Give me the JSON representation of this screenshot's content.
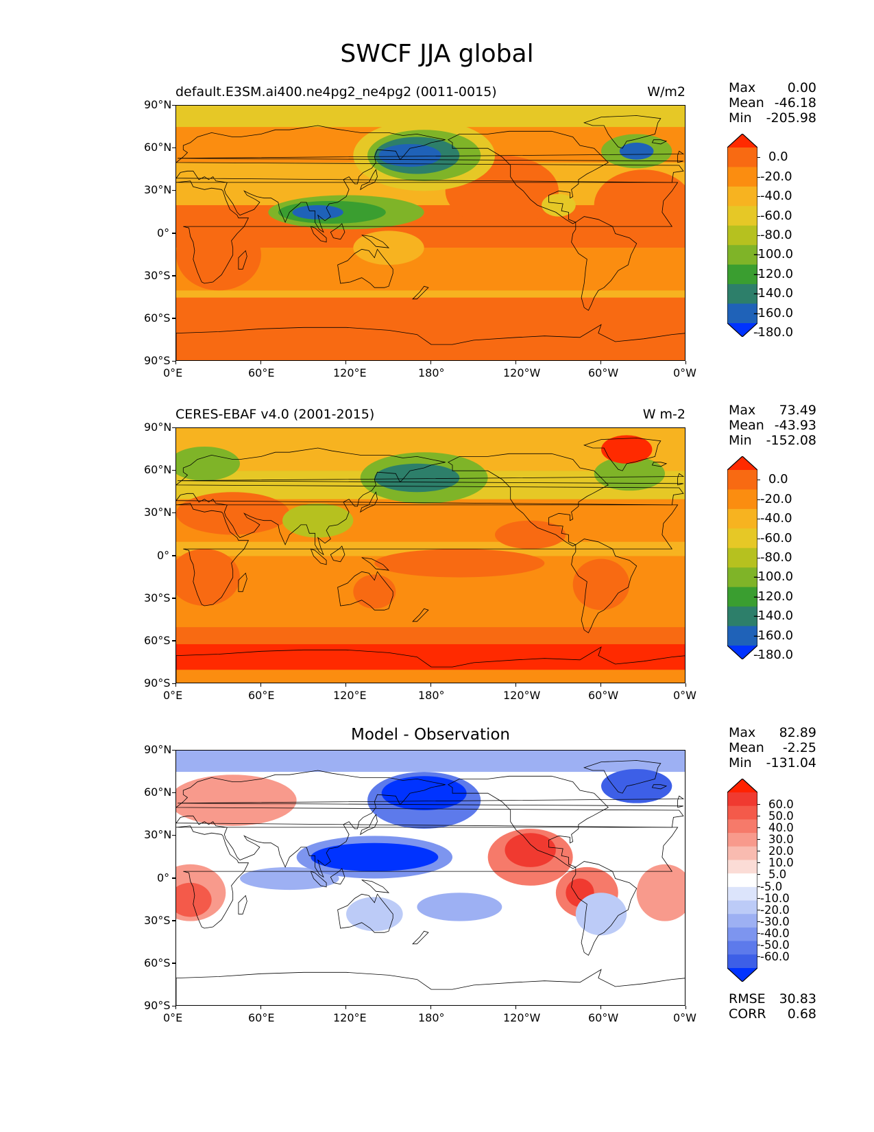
{
  "title": "SWCF JJA global",
  "panels": [
    {
      "id": "model",
      "title": "default.E3SM.ai400.ne4pg2_ne4pg2 (0011-0015)",
      "units": "W/m2",
      "stats": {
        "max_label": "Max",
        "max": "0.00",
        "mean_label": "Mean",
        "mean": "-46.18",
        "min_label": "Min",
        "min": "-205.98"
      },
      "xticks": [
        "0°E",
        "60°E",
        "120°E",
        "180°",
        "120°W",
        "60°W",
        "0°W"
      ],
      "yticks": [
        "90°N",
        "60°N",
        "30°N",
        "0°",
        "30°S",
        "60°S",
        "90°S"
      ]
    },
    {
      "id": "obs",
      "title": "CERES-EBAF v4.0 (2001-2015)",
      "units": "W m-2",
      "stats": {
        "max_label": "Max",
        "max": "73.49",
        "mean_label": "Mean",
        "mean": "-43.93",
        "min_label": "Min",
        "min": "-152.08"
      },
      "xticks": [
        "0°E",
        "60°E",
        "120°E",
        "180°",
        "120°W",
        "60°W",
        "0°W"
      ],
      "yticks": [
        "90°N",
        "60°N",
        "30°N",
        "0°",
        "30°S",
        "60°S",
        "90°S"
      ]
    },
    {
      "id": "diff",
      "title": "Model - Observation",
      "units": "",
      "stats": {
        "max_label": "Max",
        "max": "82.89",
        "mean_label": "Mean",
        "mean": "-2.25",
        "min_label": "Min",
        "min": "-131.04"
      },
      "xticks": [
        "0°E",
        "60°E",
        "120°E",
        "180°",
        "120°W",
        "60°W",
        "0°W"
      ],
      "yticks": [
        "90°N",
        "60°N",
        "30°N",
        "0°",
        "30°S",
        "60°S",
        "90°S"
      ],
      "rmse_label": "RMSE",
      "rmse": "30.83",
      "corr_label": "CORR",
      "corr": "0.68"
    }
  ],
  "colorbar_main": {
    "labels": [
      "0.0",
      "-20.0",
      "-40.0",
      "-60.0",
      "-80.0",
      "-100.0",
      "-120.0",
      "-140.0",
      "-160.0",
      "-180.0"
    ],
    "colors": [
      "#ff2a00",
      "#f86a12",
      "#fb8d10",
      "#f7b320",
      "#e6c826",
      "#b6c11f",
      "#7fb428",
      "#3a9e30",
      "#2d7f6a",
      "#1f62b8",
      "#0033ff"
    ]
  },
  "colorbar_diff": {
    "labels": [
      "60.0",
      "50.0",
      "40.0",
      "30.0",
      "20.0",
      "10.0",
      "5.0",
      "-5.0",
      "-10.0",
      "-20.0",
      "-30.0",
      "-40.0",
      "-50.0",
      "-60.0"
    ],
    "colors": [
      "#ff2200",
      "#f03a30",
      "#f45a4a",
      "#f67a6a",
      "#f89a8c",
      "#f9bbb0",
      "#fbdcd6",
      "#ffffff",
      "#dce4fb",
      "#bccbf7",
      "#9db0f3",
      "#7d95ef",
      "#5d7aeb",
      "#3d5fe7",
      "#0033ff"
    ]
  },
  "chart_data": [
    {
      "type": "heatmap",
      "title": "default.E3SM.ai400.ne4pg2_ne4pg2 (0011-0015)",
      "xlabel": "",
      "ylabel": "",
      "x_range": [
        0,
        360
      ],
      "y_range": [
        -90,
        90
      ],
      "colorbar_ticks": [
        0,
        -20,
        -40,
        -60,
        -80,
        -100,
        -120,
        -140,
        -160,
        -180
      ],
      "units": "W/m2",
      "max": 0.0,
      "mean": -46.18,
      "min": -205.98
    },
    {
      "type": "heatmap",
      "title": "CERES-EBAF v4.0 (2001-2015)",
      "xlabel": "",
      "ylabel": "",
      "x_range": [
        0,
        360
      ],
      "y_range": [
        -90,
        90
      ],
      "colorbar_ticks": [
        0,
        -20,
        -40,
        -60,
        -80,
        -100,
        -120,
        -140,
        -160,
        -180
      ],
      "units": "W m-2",
      "max": 73.49,
      "mean": -43.93,
      "min": -152.08
    },
    {
      "type": "heatmap",
      "title": "Model - Observation",
      "xlabel": "",
      "ylabel": "",
      "x_range": [
        0,
        360
      ],
      "y_range": [
        -90,
        90
      ],
      "colorbar_ticks": [
        60,
        50,
        40,
        30,
        20,
        10,
        5,
        -5,
        -10,
        -20,
        -30,
        -40,
        -50,
        -60
      ],
      "max": 82.89,
      "mean": -2.25,
      "min": -131.04,
      "rmse": 30.83,
      "corr": 0.68
    }
  ]
}
